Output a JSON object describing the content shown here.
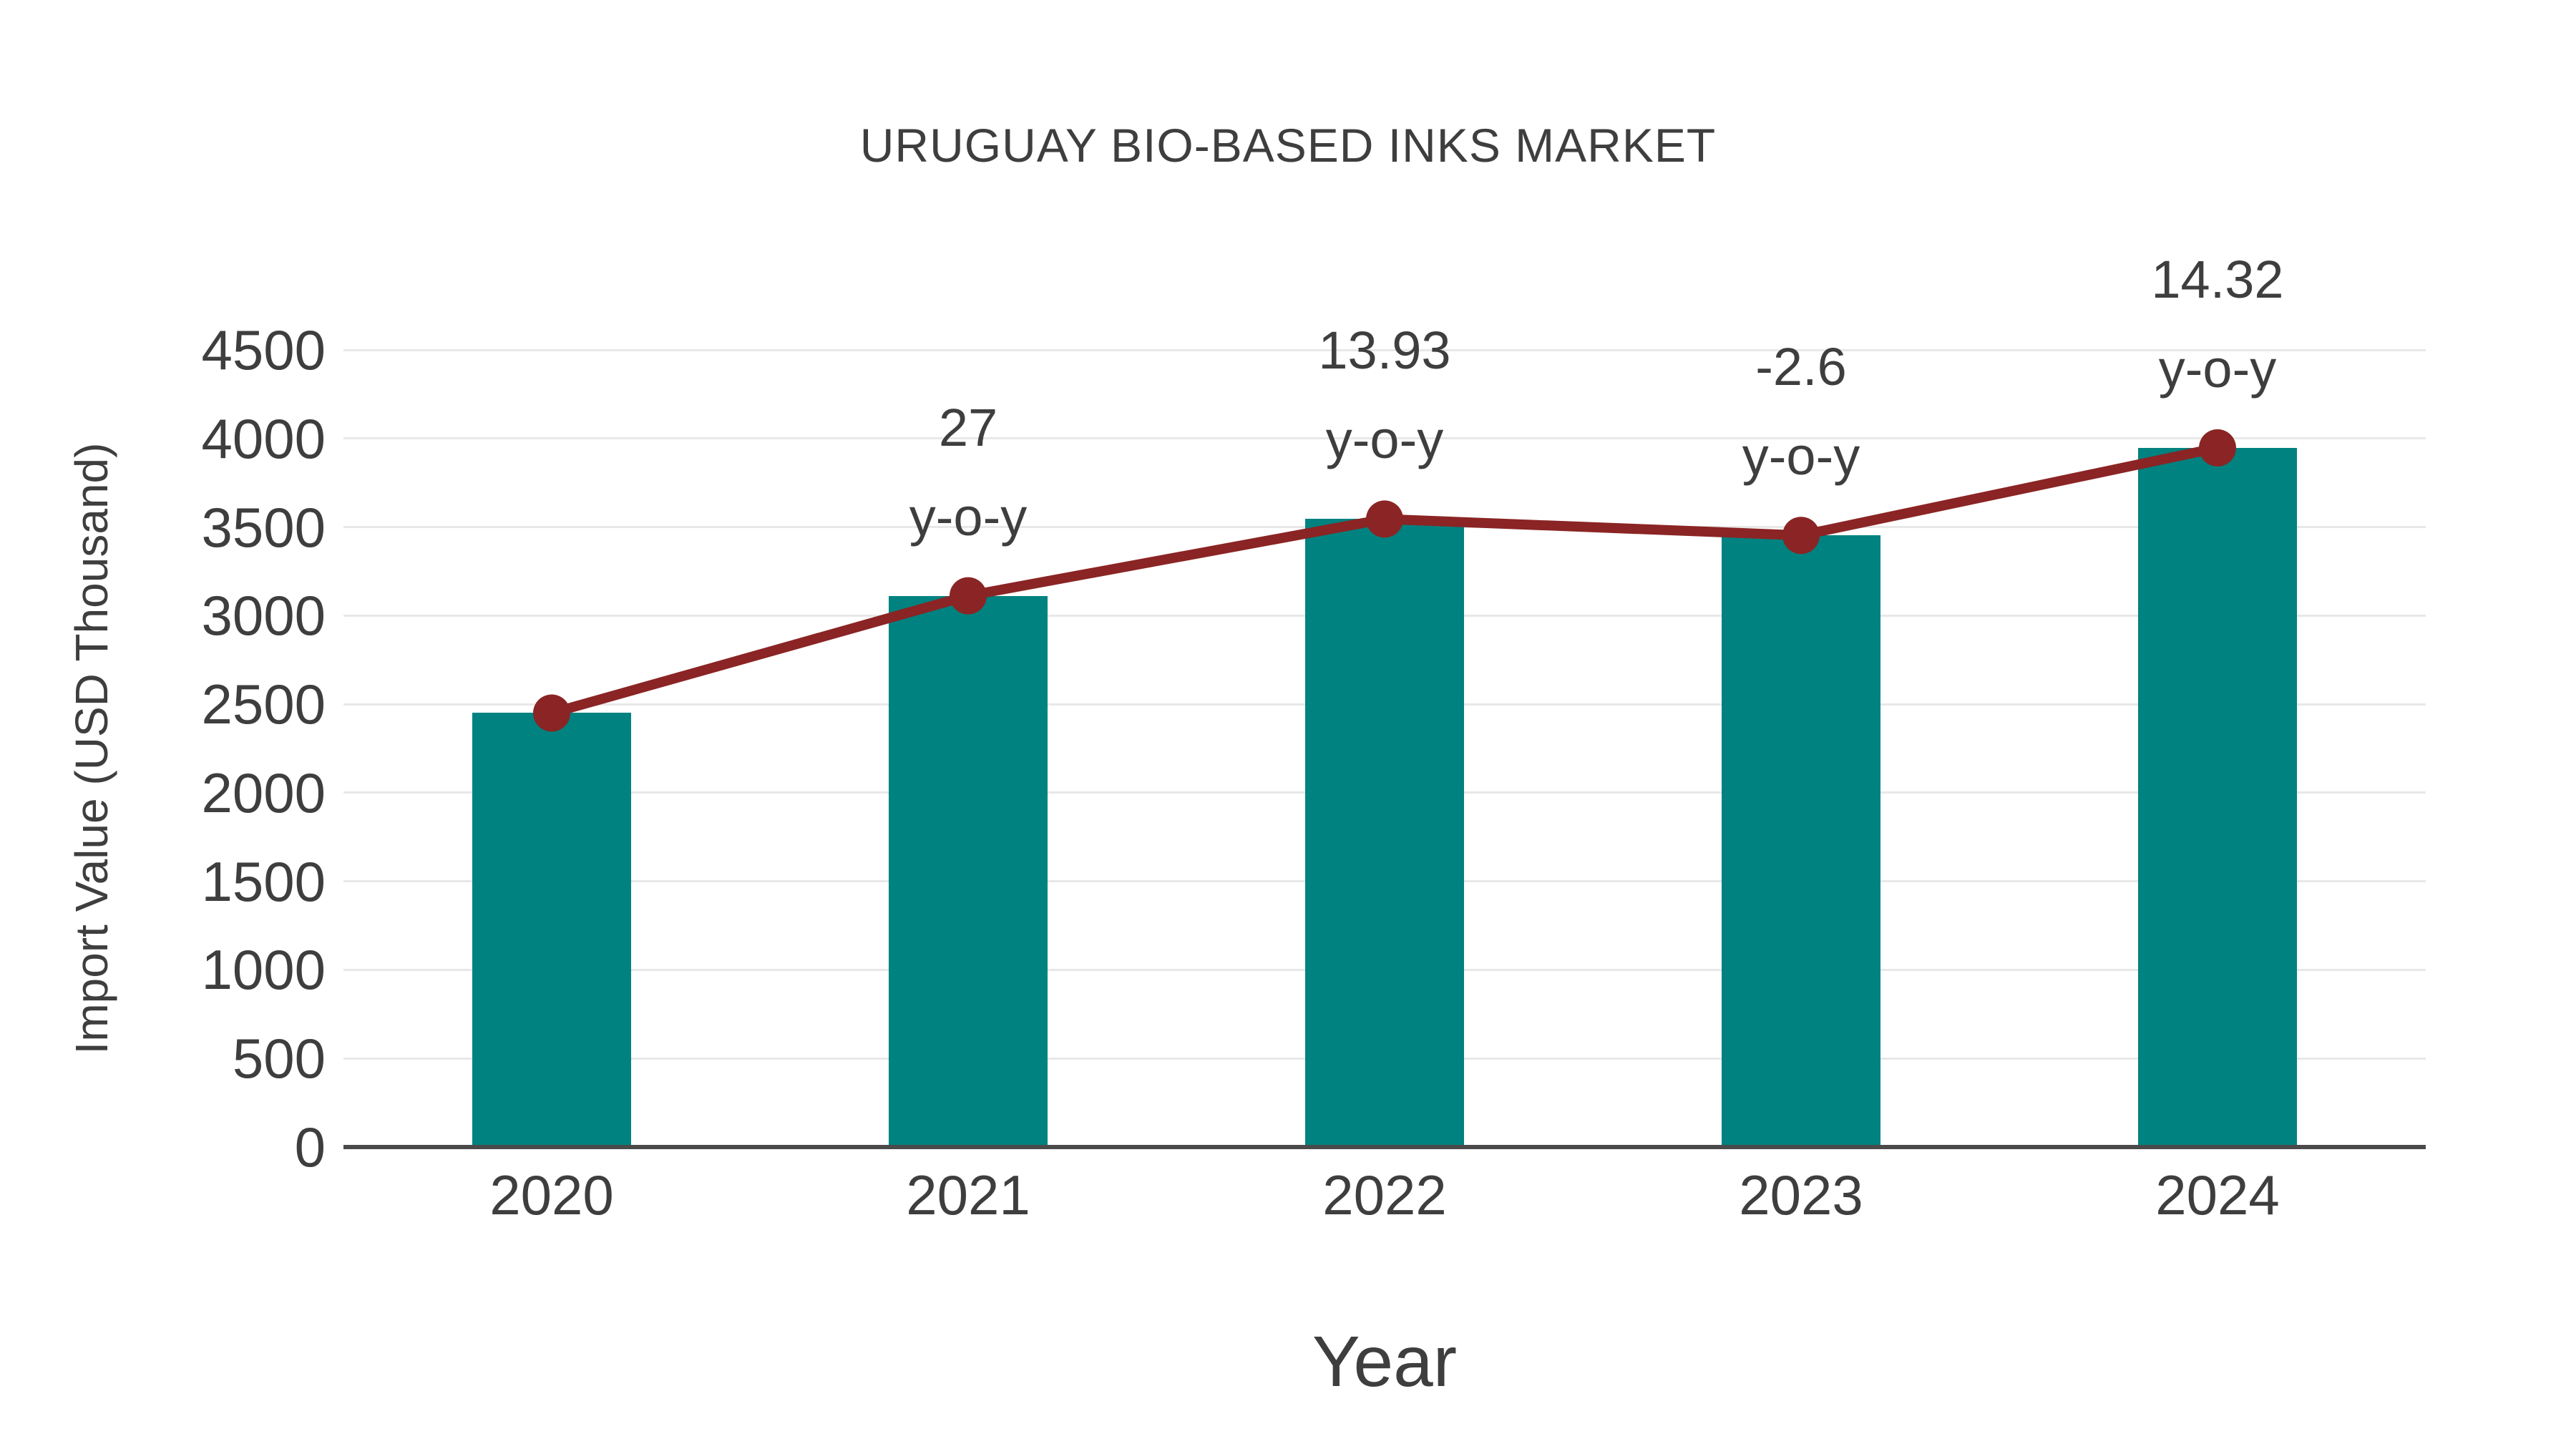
{
  "title": "URUGUAY BIO-BASED INKS MARKET",
  "chart_data": {
    "type": "bar+line",
    "title": "URUGUAY BIO-BASED INKS MARKET",
    "xlabel": "Year",
    "ylabel": "Import Value (USD Thousand)",
    "categories": [
      "2020",
      "2021",
      "2022",
      "2023",
      "2024"
    ],
    "series": [
      {
        "name": "import-value-bars",
        "type": "bar",
        "values": [
          2450,
          3112,
          3545,
          3453,
          3947
        ]
      },
      {
        "name": "import-value-trend-line",
        "type": "line",
        "values": [
          2450,
          3112,
          3545,
          3453,
          3947
        ]
      }
    ],
    "annotations": [
      {
        "category": "2021",
        "line1": "27",
        "line2": "y-o-y"
      },
      {
        "category": "2022",
        "line1": "13.93",
        "line2": "y-o-y"
      },
      {
        "category": "2023",
        "line1": "-2.6",
        "line2": "y-o-y"
      },
      {
        "category": "2024",
        "line1": "14.32",
        "line2": "y-o-y"
      }
    ],
    "ylim": [
      0,
      4500
    ],
    "yticks": [
      0,
      500,
      1000,
      1500,
      2000,
      2500,
      3000,
      3500,
      4000,
      4500
    ],
    "grid": true,
    "legend_position": "none",
    "colors": {
      "bar": "#008280",
      "line": "#8b2424",
      "marker": "#8b2424",
      "text": "#3e3e3e",
      "gridline": "#e8e8e8",
      "axis": "#4a4a4a"
    }
  }
}
